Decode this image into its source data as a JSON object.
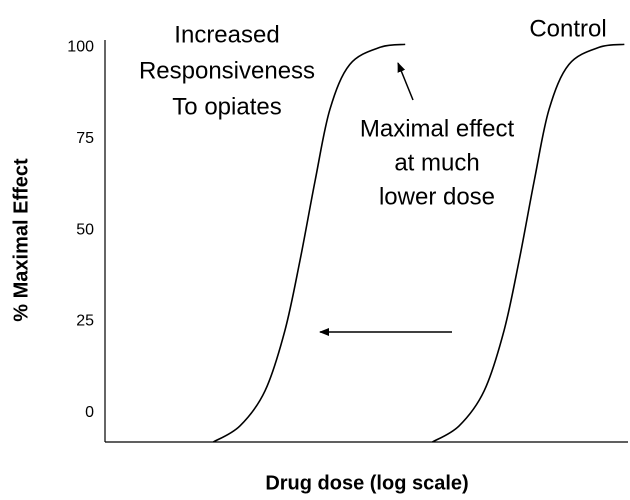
{
  "chart_data": {
    "type": "line",
    "xlabel": "Drug dose (log scale)",
    "ylabel": "% Maximal Effect",
    "xlim": [
      0,
      100
    ],
    "ylim": [
      -8,
      102
    ],
    "yticks": [
      0,
      25,
      50,
      75,
      100
    ],
    "color": "#000000",
    "series": [
      {
        "x": [
          20.7,
          25.8,
          30.6,
          34.4,
          37.3,
          40.2,
          43.0,
          46.8,
          52.6,
          57.4
        ],
        "values": [
          -8,
          -3.6,
          6,
          22.5,
          41.8,
          63.7,
          83,
          95.3,
          100,
          100.8
        ]
      },
      {
        "x": [
          62.6,
          67.7,
          72.5,
          76.3,
          79.2,
          82.1,
          84.9,
          88.7,
          94.5,
          99.3
        ],
        "values": [
          -8,
          -3.6,
          6,
          22.5,
          41.8,
          63.7,
          83,
          95.3,
          100,
          100.8
        ]
      }
    ],
    "annotations": [
      {
        "lines": [
          "Increased",
          "Responsiveness",
          "To opiates"
        ]
      },
      {
        "lines": [
          "Control"
        ]
      },
      {
        "lines": [
          "Maximal effect",
          "at much",
          "lower dose"
        ]
      }
    ]
  }
}
